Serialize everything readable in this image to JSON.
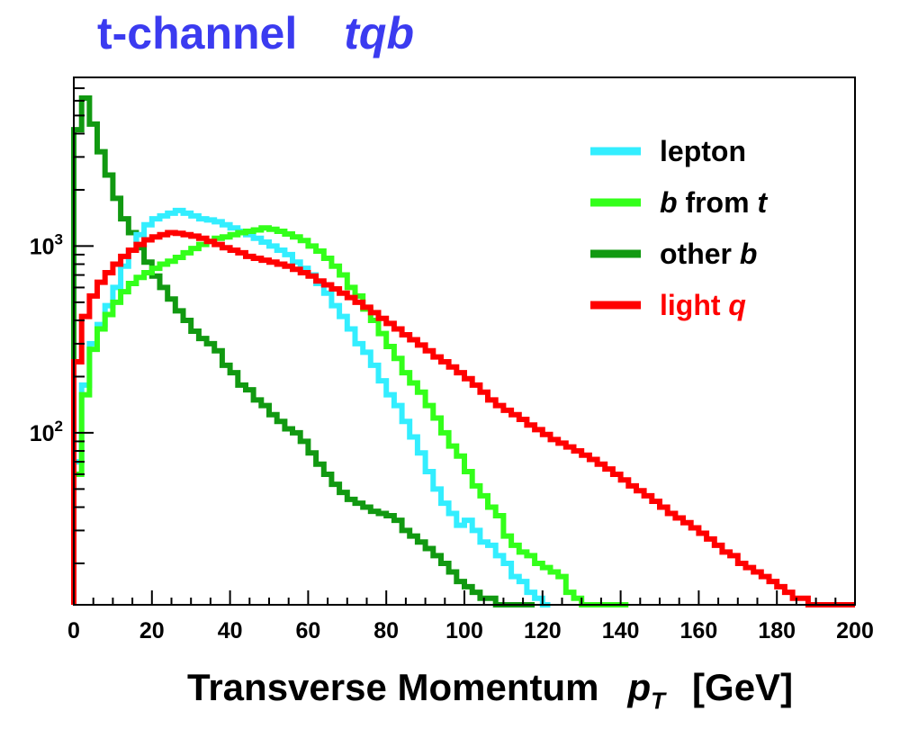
{
  "title": "t-channel",
  "subtitle": "tqb",
  "xlabel": {
    "text": "Transverse Momentum",
    "symbol": "p",
    "subscript": "T",
    "unit": "[GeV]"
  },
  "chart_data": {
    "type": "line",
    "style": "step histogram",
    "title": "t-channel tqb",
    "xlabel": "Transverse Momentum p_T [GeV]",
    "ylabel": "",
    "xlim": [
      0,
      200
    ],
    "ylim": [
      12,
      8000
    ],
    "yscale": "log",
    "x_tick_labels": [
      "0",
      "20",
      "40",
      "60",
      "80",
      "100",
      "120",
      "140",
      "160",
      "180",
      "200"
    ],
    "y_tick_labels": [
      {
        "value": 100,
        "base": "10",
        "exp": "2"
      },
      {
        "value": 1000,
        "base": "10",
        "exp": "3"
      }
    ],
    "grid": false,
    "legend_position": "top-right",
    "series": [
      {
        "name": "lepton",
        "label_parts": [
          {
            "t": "lepton",
            "i": false
          }
        ],
        "color": "#33eeff",
        "label_color": "#000000",
        "x": [
          0,
          2,
          4,
          6,
          8,
          10,
          12,
          14,
          16,
          18,
          20,
          22,
          24,
          26,
          28,
          30,
          32,
          34,
          36,
          38,
          40,
          42,
          44,
          46,
          48,
          50,
          52,
          54,
          56,
          58,
          60,
          62,
          64,
          66,
          68,
          70,
          72,
          74,
          76,
          78,
          80,
          82,
          84,
          86,
          88,
          90,
          92,
          94,
          96,
          98,
          100,
          102,
          104,
          106,
          108,
          110,
          112,
          114,
          116,
          118,
          120
        ],
        "y": [
          70,
          180,
          300,
          380,
          480,
          600,
          780,
          950,
          1150,
          1300,
          1400,
          1450,
          1500,
          1550,
          1500,
          1450,
          1400,
          1380,
          1350,
          1300,
          1250,
          1200,
          1150,
          1100,
          1050,
          1000,
          950,
          900,
          820,
          760,
          700,
          630,
          560,
          480,
          420,
          360,
          300,
          270,
          230,
          190,
          160,
          140,
          115,
          95,
          78,
          62,
          50,
          42,
          37,
          32,
          34,
          30,
          26,
          25,
          22,
          20,
          17,
          16,
          14,
          13,
          12
        ]
      },
      {
        "name": "b from t",
        "label_parts": [
          {
            "t": "b",
            "i": true
          },
          {
            "t": " from ",
            "i": false
          },
          {
            "t": "t",
            "i": true
          }
        ],
        "color": "#33ff1a",
        "label_color": "#000000",
        "x": [
          0,
          2,
          4,
          6,
          8,
          10,
          12,
          14,
          16,
          18,
          20,
          22,
          24,
          26,
          28,
          30,
          32,
          34,
          36,
          38,
          40,
          42,
          44,
          46,
          48,
          50,
          52,
          54,
          56,
          58,
          60,
          62,
          64,
          66,
          68,
          70,
          72,
          74,
          76,
          78,
          80,
          82,
          84,
          86,
          88,
          90,
          92,
          94,
          96,
          98,
          100,
          102,
          104,
          106,
          108,
          110,
          112,
          114,
          116,
          118,
          120,
          122,
          124,
          126,
          128,
          130,
          132,
          134,
          136,
          138,
          140
        ],
        "y": [
          60,
          160,
          280,
          360,
          430,
          500,
          570,
          630,
          680,
          720,
          760,
          800,
          830,
          870,
          920,
          970,
          1020,
          1060,
          1100,
          1120,
          1150,
          1180,
          1200,
          1220,
          1250,
          1230,
          1200,
          1160,
          1120,
          1070,
          1000,
          940,
          860,
          780,
          700,
          600,
          540,
          460,
          400,
          340,
          290,
          250,
          210,
          185,
          165,
          140,
          120,
          100,
          85,
          75,
          62,
          52,
          46,
          40,
          36,
          28,
          25,
          23,
          22,
          20,
          19,
          18,
          17,
          14,
          13,
          12,
          12,
          12,
          12,
          12,
          12
        ]
      },
      {
        "name": "other b",
        "label_parts": [
          {
            "t": "other ",
            "i": false
          },
          {
            "t": "b",
            "i": true
          }
        ],
        "color": "#119911",
        "label_color": "#000000",
        "x": [
          0,
          2,
          4,
          6,
          8,
          10,
          12,
          14,
          16,
          18,
          20,
          22,
          24,
          26,
          28,
          30,
          32,
          34,
          36,
          38,
          40,
          42,
          44,
          46,
          48,
          50,
          52,
          54,
          56,
          58,
          60,
          62,
          64,
          66,
          68,
          70,
          72,
          74,
          76,
          78,
          80,
          82,
          84,
          86,
          88,
          90,
          92,
          94,
          96,
          98,
          100,
          102,
          104,
          106,
          108,
          110,
          112,
          114,
          116
        ],
        "y": [
          4200,
          6200,
          4500,
          3200,
          2400,
          1800,
          1400,
          1180,
          980,
          820,
          690,
          600,
          520,
          450,
          400,
          350,
          320,
          300,
          275,
          230,
          210,
          180,
          170,
          150,
          140,
          125,
          115,
          105,
          100,
          90,
          78,
          68,
          60,
          53,
          48,
          44,
          42,
          40,
          38,
          37,
          36,
          34,
          30,
          28,
          26,
          24,
          22,
          20,
          18,
          16,
          15,
          14,
          13,
          13,
          12,
          12,
          12,
          12,
          12
        ]
      },
      {
        "name": "light q",
        "label_parts": [
          {
            "t": "light ",
            "i": false
          },
          {
            "t": "q",
            "i": true
          }
        ],
        "color": "#ff0000",
        "label_color": "#ff0000",
        "x": [
          0,
          2,
          4,
          6,
          8,
          10,
          12,
          14,
          16,
          18,
          20,
          22,
          24,
          26,
          28,
          30,
          32,
          34,
          36,
          38,
          40,
          42,
          44,
          46,
          48,
          50,
          52,
          54,
          56,
          58,
          60,
          62,
          64,
          66,
          68,
          70,
          72,
          74,
          76,
          78,
          80,
          82,
          84,
          86,
          88,
          90,
          92,
          94,
          96,
          98,
          100,
          102,
          104,
          106,
          108,
          110,
          112,
          114,
          116,
          118,
          120,
          122,
          124,
          126,
          128,
          130,
          132,
          134,
          136,
          138,
          140,
          142,
          144,
          146,
          148,
          150,
          152,
          154,
          156,
          158,
          160,
          162,
          164,
          166,
          168,
          170,
          172,
          174,
          176,
          178,
          180,
          182,
          184,
          186,
          188,
          190,
          192,
          194,
          196,
          198
        ],
        "y": [
          240,
          420,
          540,
          640,
          720,
          800,
          880,
          950,
          1020,
          1080,
          1120,
          1150,
          1180,
          1170,
          1150,
          1130,
          1100,
          1060,
          1020,
          980,
          950,
          920,
          880,
          860,
          840,
          820,
          800,
          780,
          750,
          720,
          690,
          650,
          620,
          590,
          560,
          530,
          500,
          470,
          440,
          410,
          385,
          360,
          335,
          315,
          295,
          275,
          255,
          240,
          225,
          210,
          195,
          180,
          165,
          150,
          140,
          132,
          125,
          118,
          110,
          104,
          98,
          92,
          88,
          84,
          80,
          76,
          72,
          68,
          64,
          60,
          56,
          52,
          49,
          46,
          43,
          40,
          37,
          35,
          33,
          31,
          29,
          27,
          25,
          23,
          22,
          20,
          19,
          18,
          17,
          16,
          15,
          14,
          13,
          13,
          12,
          12,
          12,
          12,
          12,
          12
        ]
      }
    ]
  }
}
